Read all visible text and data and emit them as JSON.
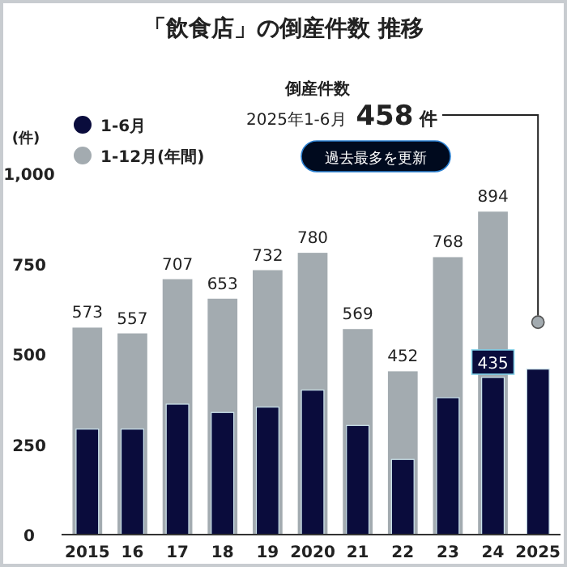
{
  "chart_data": {
    "type": "bar",
    "title": "「飲食店」の倒産件数  推移",
    "ylabel": "(件)",
    "categories": [
      "2015",
      "16",
      "17",
      "18",
      "19",
      "2020",
      "21",
      "22",
      "23",
      "24",
      "2025"
    ],
    "series": [
      {
        "name": "1-12月(年間)",
        "color": "#a3abb0",
        "values": [
          573,
          557,
          707,
          653,
          732,
          780,
          569,
          452,
          768,
          894,
          null
        ],
        "value_labels": [
          "573",
          "557",
          "707",
          "653",
          "732",
          "780",
          "569",
          "452",
          "768",
          "894",
          null
        ]
      },
      {
        "name": "1-6月",
        "color": "#0a0c3c",
        "values": [
          292,
          292,
          361,
          338,
          353,
          400,
          302,
          208,
          379,
          435,
          458
        ],
        "value_labels": [
          null,
          null,
          null,
          null,
          null,
          null,
          null,
          null,
          null,
          "435",
          null
        ]
      }
    ],
    "ylim": [
      0,
      1000
    ],
    "yticks": [
      0,
      250,
      500,
      750,
      {
        "value": 1000,
        "label": "1,000"
      }
    ],
    "legend": "top left",
    "grid": false,
    "annotations": [
      "倒産件数\n2025年1-6月 458 件",
      "過去最多を更新"
    ]
  }
}
